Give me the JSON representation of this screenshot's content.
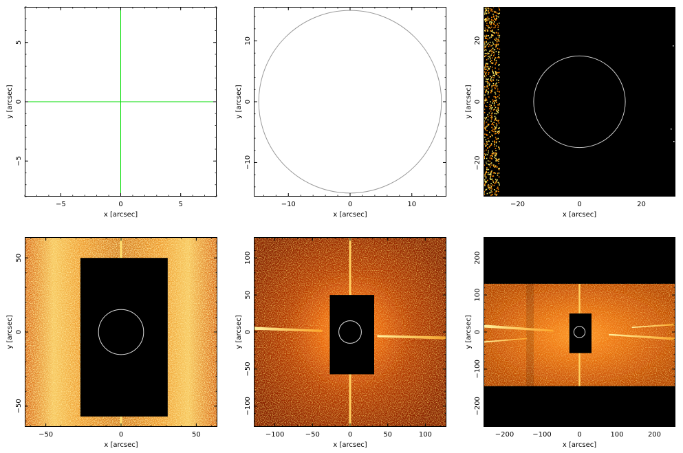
{
  "chart_data": [
    {
      "type": "line",
      "panel": "top-left",
      "content": "green crosshair at origin",
      "xlabel": "x [arcsec]",
      "ylabel": "y [arcsec]",
      "xlim": [
        -8,
        8
      ],
      "ylim": [
        -8,
        8
      ],
      "xticks": [
        -5,
        0,
        5
      ],
      "yticks": [
        -5,
        0,
        5
      ],
      "xticklabels": [
        "−5",
        "0",
        "5"
      ],
      "yticklabels": [
        "−5",
        "0",
        "5"
      ],
      "background": "#ffffff",
      "line_color": "#00dd00",
      "lines": [
        {
          "x": [
            -8,
            8
          ],
          "y": [
            0,
            0
          ]
        },
        {
          "x": [
            0,
            0
          ],
          "y": [
            -8,
            8
          ]
        }
      ]
    },
    {
      "type": "line",
      "panel": "top-middle",
      "content": "circle aperture",
      "xlabel": "x [arcsec]",
      "ylabel": "y [arcsec]",
      "xlim": [
        -15.6,
        15.6
      ],
      "ylim": [
        -15.6,
        15.6
      ],
      "xticks": [
        -10,
        0,
        10
      ],
      "yticks": [
        -10,
        0,
        10
      ],
      "xticklabels": [
        "−10",
        "0",
        "10"
      ],
      "yticklabels": [
        "−10",
        "0",
        "10"
      ],
      "background": "#ffffff",
      "circle": {
        "cx": 0,
        "cy": 0,
        "r": 14.8,
        "color": "#999999"
      }
    },
    {
      "type": "heatmap",
      "panel": "top-right",
      "xlabel": "x [arcsec]",
      "ylabel": "y [arcsec]",
      "xlim": [
        -31,
        31
      ],
      "ylim": [
        -31,
        31
      ],
      "xticks": [
        -20,
        0,
        20
      ],
      "yticks": [
        -20,
        0,
        20
      ],
      "xticklabels": [
        "−20",
        "0",
        "20"
      ],
      "yticklabels": [
        "−20",
        "0",
        "20"
      ],
      "background": "#000000",
      "circle": {
        "cx": 0,
        "cy": 0,
        "r": 14.8,
        "color": "#cccccc"
      },
      "mask": null,
      "noise_region": {
        "x_max": -26,
        "color_range": [
          "#ff8800",
          "#ffee66"
        ]
      }
    },
    {
      "type": "heatmap",
      "panel": "bottom-left",
      "xlabel": "x [arcsec]",
      "ylabel": "y [arcsec]",
      "xlim": [
        -64,
        64
      ],
      "ylim": [
        -64,
        64
      ],
      "xticks": [
        -50,
        0,
        50
      ],
      "yticks": [
        -50,
        0,
        50
      ],
      "xticklabels": [
        "−50",
        "0",
        "50"
      ],
      "yticklabels": [
        "−50",
        "0",
        "50"
      ],
      "background": "#cc5500",
      "circle": {
        "cx": 0,
        "cy": 0,
        "r": 15,
        "color": "#dddddd"
      },
      "mask": {
        "x0": -27,
        "x1": 31,
        "y0": -57,
        "y1": 50
      }
    },
    {
      "type": "heatmap",
      "panel": "bottom-middle",
      "xlabel": "x [arcsec]",
      "ylabel": "y [arcsec]",
      "xlim": [
        -128,
        128
      ],
      "ylim": [
        -128,
        128
      ],
      "xticks": [
        -100,
        -50,
        0,
        50,
        100
      ],
      "yticks": [
        -100,
        -50,
        0,
        50,
        100
      ],
      "xticklabels": [
        "−100",
        "−50",
        "0",
        "50",
        "100"
      ],
      "yticklabels": [
        "−100",
        "−50",
        "0",
        "50",
        "100"
      ],
      "background": "#a13000",
      "circle": {
        "cx": 0,
        "cy": 0,
        "r": 15,
        "color": "#dddddd"
      },
      "mask": {
        "x0": -27,
        "x1": 32,
        "y0": -57,
        "y1": 50
      }
    },
    {
      "type": "heatmap",
      "panel": "bottom-right",
      "xlabel": "x [arcsec]",
      "ylabel": "y [arcsec]",
      "xlim": [
        -256,
        256
      ],
      "ylim": [
        -256,
        256
      ],
      "xticks": [
        -200,
        -100,
        0,
        100,
        200
      ],
      "yticks": [
        -200,
        -100,
        0,
        100,
        200
      ],
      "xticklabels": [
        "−200",
        "−100",
        "0",
        "100",
        "200"
      ],
      "yticklabels": [
        "−200",
        "−100",
        "0",
        "100",
        "200"
      ],
      "background": "#000000",
      "circle": {
        "cx": 0,
        "cy": 0,
        "r": 15,
        "color": "#dddddd"
      },
      "mask": {
        "x0": -27,
        "x1": 32,
        "y0": -57,
        "y1": 50
      },
      "band": {
        "y0": -146,
        "y1": 130,
        "color": "#c24a00"
      }
    }
  ]
}
